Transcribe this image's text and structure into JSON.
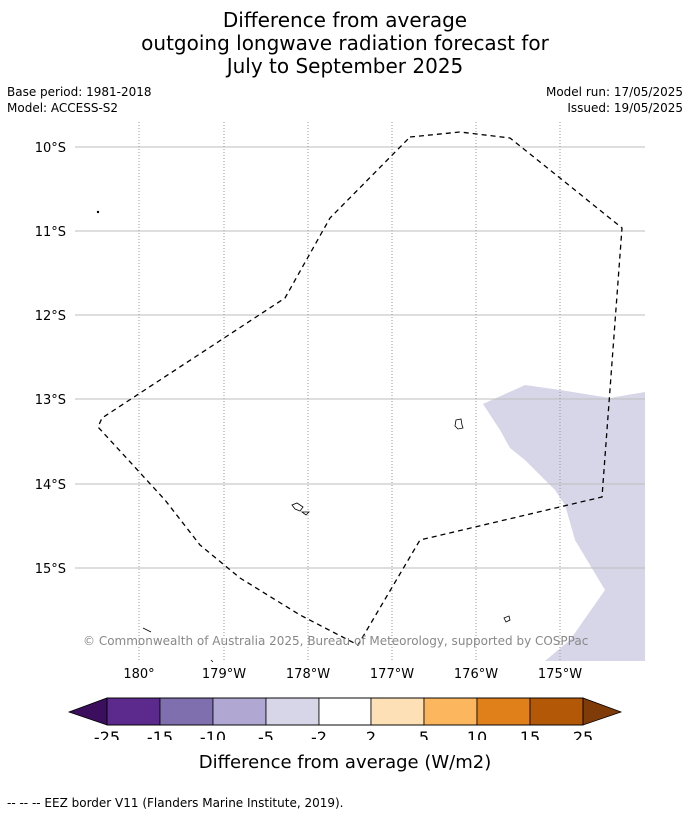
{
  "title": {
    "line1": "Difference from average",
    "line2": "outgoing longwave radiation forecast for",
    "line3": "July to September 2025"
  },
  "meta": {
    "base_period": "Base period: 1981-2018",
    "model": "Model: ACCESS-S2",
    "model_run": "Model run: 17/05/2025",
    "issued": "Issued: 19/05/2025"
  },
  "map": {
    "lat_labels": [
      "10°S",
      "11°S",
      "12°S",
      "13°S",
      "14°S",
      "15°S"
    ],
    "lon_labels": [
      "180°",
      "179°W",
      "178°W",
      "177°W",
      "176°W",
      "175°W"
    ],
    "copyright": "© Commonwealth of Australia 2025, Bureau of Meteorology, supported by COSPPac",
    "anomaly_region": {
      "category": "-5 to -2",
      "color": "#d6d6e8"
    },
    "eez_style": "dashed"
  },
  "colorbar": {
    "ticks": [
      "-25",
      "-15",
      "-10",
      "-5",
      "-2",
      "2",
      "5",
      "10",
      "15",
      "25"
    ],
    "colors": {
      "below_min": "#3b0f5e",
      "bins": [
        "#5b2a8c",
        "#7f6fae",
        "#b0a8d2",
        "#d6d6e8",
        "#ffffff",
        "#fde0b6",
        "#fbb65e",
        "#e0801a",
        "#b35806"
      ],
      "above_max": "#7f3b08"
    },
    "label": "Difference from average (W/m2)"
  },
  "footer": "--  --  -- EEZ border V11 (Flanders Marine Institute, 2019)."
}
